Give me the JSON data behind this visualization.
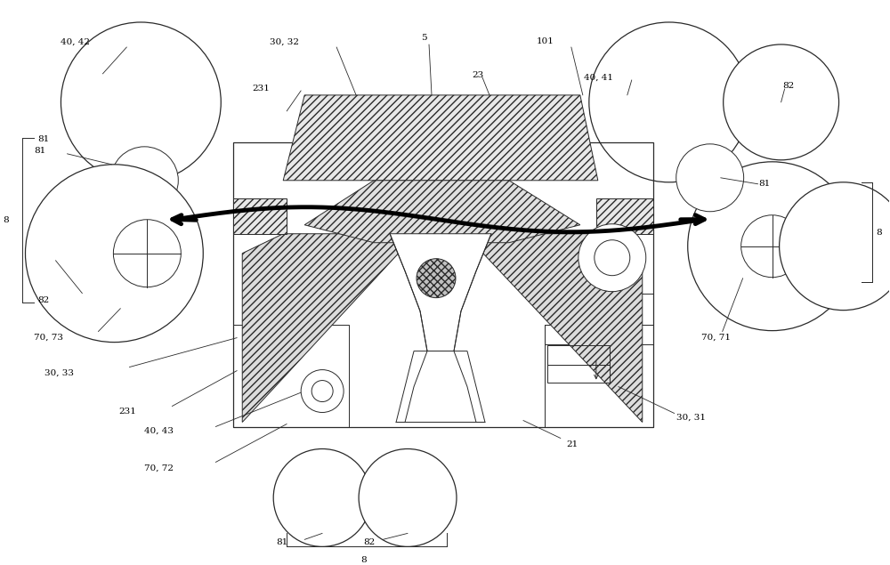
{
  "bg": "#ffffff",
  "lc": "#2a2a2a",
  "fig_w": 10.0,
  "fig_h": 6.35,
  "dpi": 100
}
